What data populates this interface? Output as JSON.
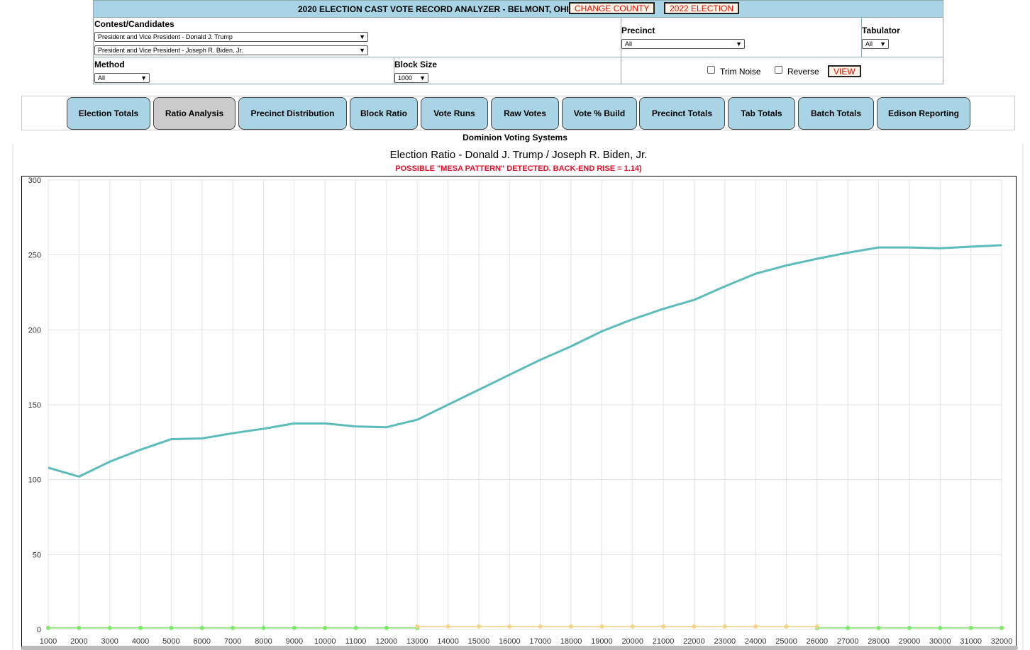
{
  "header": {
    "title": "2020 ELECTION CAST VOTE RECORD ANALYZER - BELMONT, OHIO",
    "change_county": "CHANGE COUNTY",
    "election_2022": "2022 ELECTION",
    "contest_label": "Contest/Candidates",
    "candidate1": "President and Vice President - Donald J. Trump",
    "candidate2": "President and Vice President - Joseph R. Biden, Jr.",
    "precinct_label": "Precinct",
    "precinct_value": "All",
    "tabulator_label": "Tabulator",
    "tabulator_value": "All",
    "method_label": "Method",
    "method_value": "All",
    "block_size_label": "Block Size",
    "block_size_value": "1000",
    "trim_noise": "Trim Noise",
    "reverse": "Reverse",
    "view": "VIEW"
  },
  "tabs": [
    "Election Totals",
    "Ratio Analysis",
    "Precinct Distribution",
    "Block Ratio",
    "Vote Runs",
    "Raw Votes",
    "Vote % Build",
    "Precinct Totals",
    "Tab Totals",
    "Batch Totals",
    "Edison Reporting"
  ],
  "active_tab": "Ratio Analysis",
  "vendor": "Dominion Voting Systems",
  "colors": {
    "ratio_line": "#5bbcba",
    "green_series": "#7ee86a",
    "orange_series": "#f5d48a",
    "accent_red": "#e0102a",
    "tab_bg": "#a8d4e6"
  },
  "chart_data": {
    "type": "line",
    "title": "Election Ratio - Donald J. Trump / Joseph R. Biden, Jr.",
    "subtitle": "POSSIBLE \"MESA PATTERN\" DETECTED. BACK-END RISE = 1.14)",
    "xlabel": "",
    "ylabel": "",
    "ylim": [
      0,
      300
    ],
    "yticks": [
      0,
      50,
      100,
      150,
      200,
      250,
      300
    ],
    "x": [
      1000,
      2000,
      3000,
      4000,
      5000,
      6000,
      7000,
      8000,
      9000,
      10000,
      11000,
      12000,
      13000,
      14000,
      15000,
      16000,
      17000,
      18000,
      19000,
      20000,
      21000,
      22000,
      23000,
      24000,
      25000,
      26000,
      27000,
      28000,
      29000,
      30000,
      31000,
      32000
    ],
    "series": [
      {
        "values": [
          108,
          102,
          112,
          120,
          127,
          127.5,
          131,
          134,
          137.5,
          137.5,
          135.5,
          135,
          140,
          150,
          160,
          170,
          180,
          189,
          199,
          207,
          214,
          220,
          229,
          237.5,
          243,
          247.5,
          251.5,
          255,
          255,
          254.5,
          255.5,
          256.5
        ]
      },
      {
        "values": [
          1,
          1,
          1,
          1,
          1,
          1,
          1,
          1,
          1,
          1,
          1,
          1,
          1,
          null,
          null,
          null,
          null,
          null,
          null,
          null,
          null,
          null,
          null,
          null,
          null,
          1,
          1,
          1,
          1,
          1,
          1,
          1
        ]
      },
      {
        "values": [
          null,
          null,
          null,
          null,
          null,
          null,
          null,
          null,
          null,
          null,
          null,
          null,
          2,
          2,
          2,
          2,
          2,
          2,
          2,
          2,
          2,
          2,
          2,
          2,
          2,
          2,
          null,
          null,
          null,
          null,
          null,
          null
        ]
      }
    ],
    "grid": true,
    "legend": "none"
  }
}
